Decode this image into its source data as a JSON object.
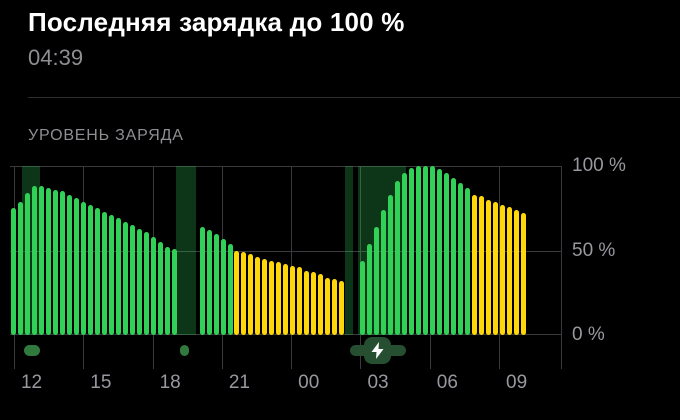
{
  "header": {
    "title": "Последняя зарядка до 100 %",
    "subtitle": "04:39"
  },
  "section": {
    "label": "УРОВЕНЬ ЗАРЯДА"
  },
  "chart_data": {
    "type": "bar",
    "title": "УРОВЕНЬ ЗАРЯДА",
    "ylim": [
      0,
      100
    ],
    "y_ticks": [
      "100 %",
      "50 %",
      "0 %"
    ],
    "x_ticks": [
      "12",
      "15",
      "18",
      "21",
      "00",
      "03",
      "06",
      "09"
    ],
    "x_tick_interval_hours": 3,
    "grid": true,
    "legend": "none",
    "colors": {
      "normal": "#31d158",
      "low_power": "#ffd60a",
      "charging_band": "rgba(48, 209, 88, 0.26)",
      "charging_marker": "#2f7a3c",
      "bolt_chip": "#264e30",
      "grid": "#3a3a3e",
      "text_secondary": "#98989f",
      "bolt": "#ffffff"
    },
    "axis_layout": {
      "first_tick_pct": 0.72,
      "tick_step_pct": 12.554
    },
    "bars": [
      [
        75,
        "g"
      ],
      [
        79,
        "g"
      ],
      [
        84,
        "g"
      ],
      [
        88,
        "g"
      ],
      [
        88,
        "g"
      ],
      [
        87,
        "g"
      ],
      [
        86,
        "g"
      ],
      [
        85,
        "g"
      ],
      [
        83,
        "g"
      ],
      [
        81,
        "g"
      ],
      [
        79,
        "g"
      ],
      [
        77,
        "g"
      ],
      [
        75,
        "g"
      ],
      [
        73,
        "g"
      ],
      [
        71,
        "g"
      ],
      [
        69,
        "g"
      ],
      [
        67,
        "g"
      ],
      [
        65,
        "g"
      ],
      [
        63,
        "g"
      ],
      [
        61,
        "g"
      ],
      [
        58,
        "g"
      ],
      [
        55,
        "g"
      ],
      [
        52,
        "g"
      ],
      [
        51,
        "g"
      ],
      null,
      null,
      null,
      [
        64,
        "g"
      ],
      [
        62,
        "g"
      ],
      [
        60,
        "g"
      ],
      [
        57,
        "g"
      ],
      [
        54,
        "g"
      ],
      [
        50,
        "y"
      ],
      [
        49,
        "y"
      ],
      [
        48,
        "y"
      ],
      [
        46,
        "y"
      ],
      [
        45,
        "y"
      ],
      [
        44,
        "y"
      ],
      [
        43,
        "y"
      ],
      [
        42,
        "y"
      ],
      [
        41,
        "y"
      ],
      [
        40,
        "y"
      ],
      [
        38,
        "y"
      ],
      [
        37,
        "y"
      ],
      [
        36,
        "y"
      ],
      [
        34,
        "y"
      ],
      [
        33,
        "y"
      ],
      [
        32,
        "y"
      ],
      null,
      null,
      [
        44,
        "g"
      ],
      [
        54,
        "g"
      ],
      [
        64,
        "g"
      ],
      [
        74,
        "g"
      ],
      [
        83,
        "g"
      ],
      [
        91,
        "g"
      ],
      [
        96,
        "g"
      ],
      [
        99,
        "g"
      ],
      [
        100,
        "g"
      ],
      [
        100,
        "g"
      ],
      [
        100,
        "g"
      ],
      [
        98,
        "g"
      ],
      [
        96,
        "g"
      ],
      [
        93,
        "g"
      ],
      [
        90,
        "g"
      ],
      [
        87,
        "g"
      ],
      [
        83,
        "y"
      ],
      [
        82,
        "y"
      ],
      [
        80,
        "y"
      ],
      [
        79,
        "y"
      ],
      [
        77,
        "y"
      ],
      [
        76,
        "y"
      ],
      [
        74,
        "y"
      ],
      [
        72,
        "y"
      ],
      null,
      null,
      null,
      null,
      null
    ],
    "charging_bands": [
      {
        "left_pct": 2.2,
        "width_pct": 3.2
      },
      {
        "left_pct": 30.1,
        "width_pct": 3.6
      },
      {
        "left_pct": 60.7,
        "width_pct": 1.5
      },
      {
        "left_pct": 63.0,
        "width_pct": 8.7
      }
    ],
    "charging_markers": [
      {
        "left_pct": 2.5,
        "width_pct": 2.9,
        "bolt": false
      },
      {
        "left_pct": 30.8,
        "width_pct": 1.6,
        "bolt": false
      },
      {
        "left_pct": 61.6,
        "width_pct": 10.1,
        "bolt": true
      }
    ],
    "bolt_icon": "lightning-bolt"
  }
}
